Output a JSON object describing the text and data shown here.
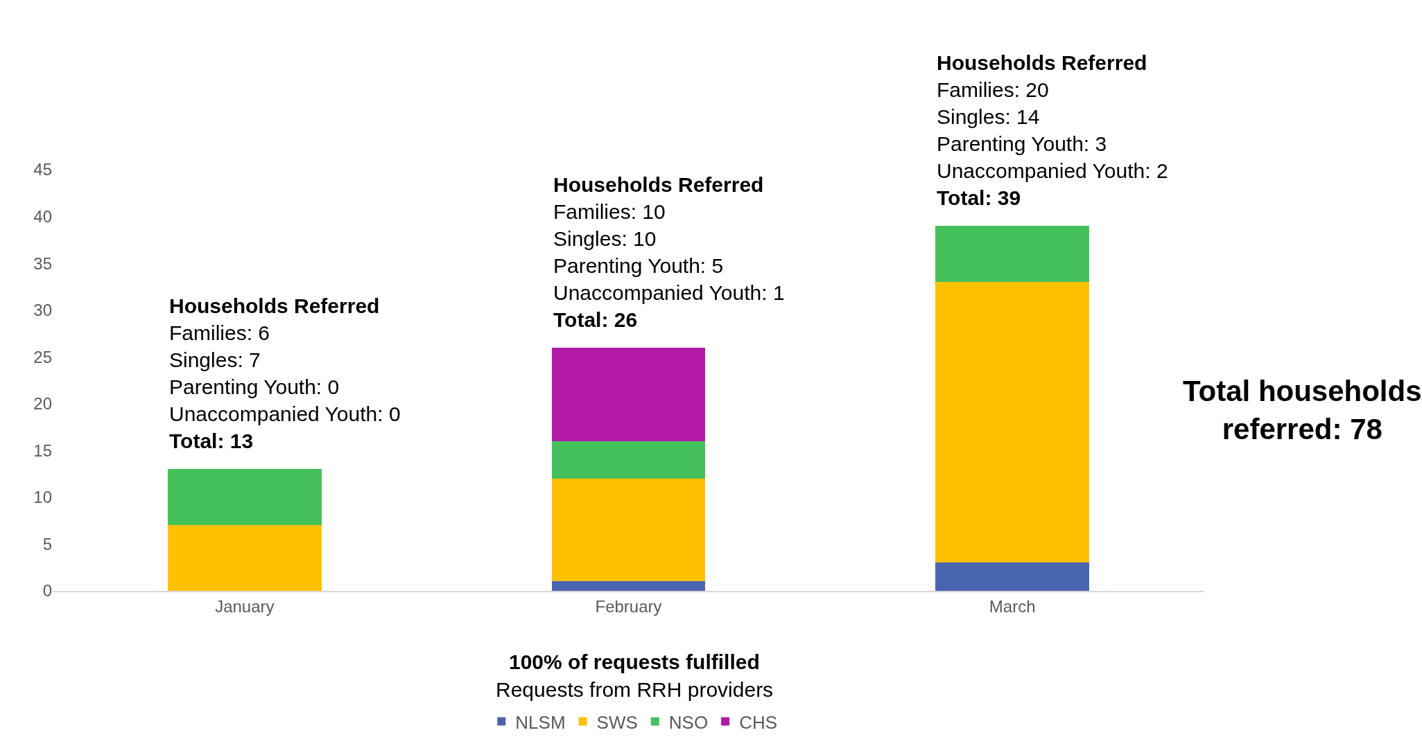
{
  "chart_data": {
    "type": "bar",
    "stacked": true,
    "categories": [
      "January",
      "February",
      "March"
    ],
    "series": [
      {
        "name": "NLSM",
        "color": "#4a65b0",
        "values": [
          null,
          1,
          3
        ]
      },
      {
        "name": "SWS",
        "color": "#ffc000",
        "values": [
          7,
          11,
          30
        ]
      },
      {
        "name": "NSO",
        "color": "#45c15b",
        "values": [
          6,
          4,
          6
        ]
      },
      {
        "name": "CHS",
        "color": "#b31aa5",
        "values": [
          null,
          10,
          null
        ]
      }
    ],
    "ylim": [
      0,
      45
    ],
    "yticks": [
      0,
      5,
      10,
      15,
      20,
      25,
      30,
      35,
      40,
      45
    ],
    "grid": false,
    "legend": "bottom",
    "annotations": [
      {
        "text": "Households Referred\nFamilies: 6\nSingles: 7\nParenting Youth: 0\nUnaccompanied Youth: 0\nTotal: 13",
        "x": "January",
        "y": 13
      },
      {
        "text": "Households Referred\nFamilies: 10\nSingles: 10\nParenting Youth: 5\nUnaccompanied Youth: 1\nTotal: 26",
        "x": "February",
        "y": 26
      },
      {
        "text": "Households Referred\nFamilies: 20\nSingles: 14\nParenting Youth: 3\nUnaccompanied Youth: 2\nTotal: 39",
        "x": "March",
        "y": 39
      },
      "Total households\nreferred: 78",
      "100% of requests fulfilled",
      "Requests from RRH providers"
    ]
  }
}
